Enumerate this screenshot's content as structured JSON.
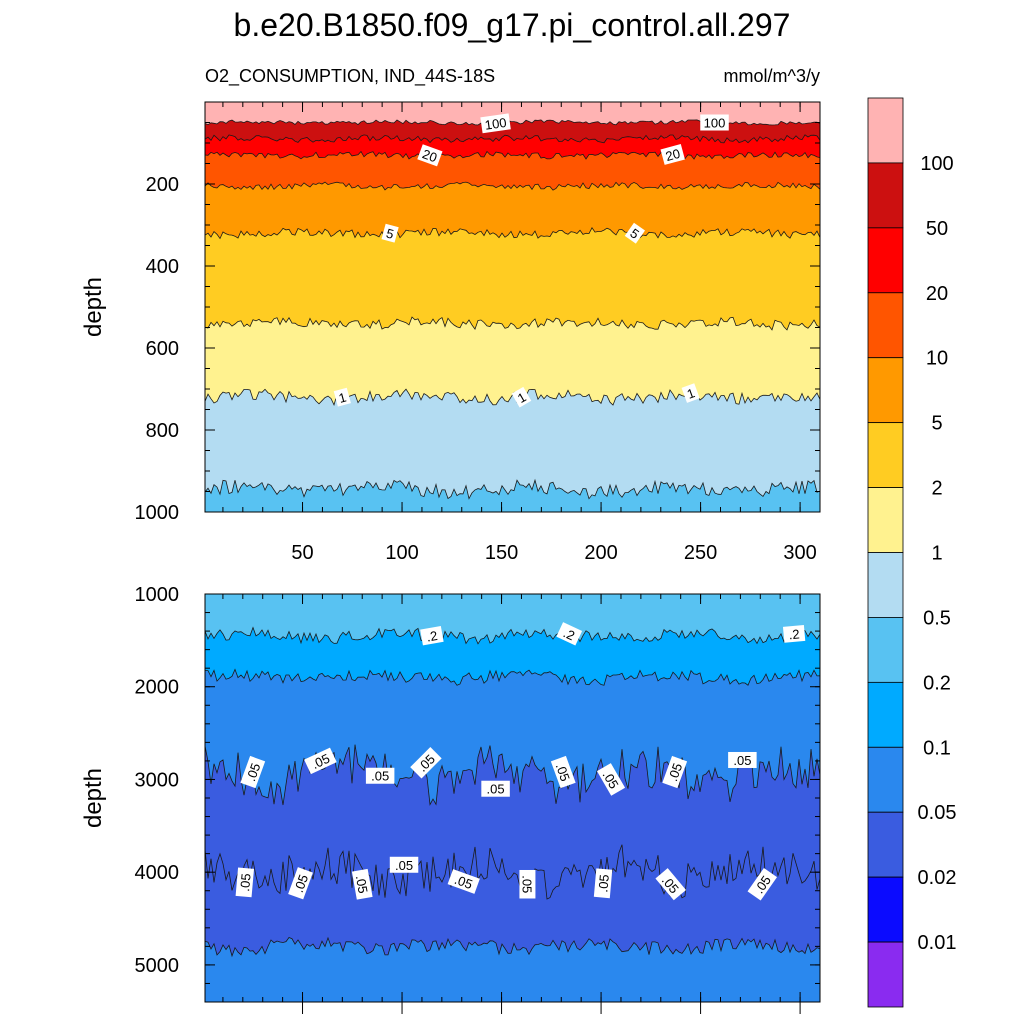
{
  "title": "b.e20.B1850.f09_g17.pi_control.all.297",
  "subtitle_left": "O2_CONSUMPTION, IND_44S-18S",
  "subtitle_right": "mmol/m^3/y",
  "chart_data": [
    {
      "type": "contour",
      "panel": "upper",
      "ylabel": "depth",
      "xlabel": "",
      "xlim": [
        1,
        310
      ],
      "ylim": [
        1000,
        0
      ],
      "x_ticks": [
        50,
        100,
        150,
        200,
        250,
        300
      ],
      "y_ticks": [
        200,
        400,
        600,
        800,
        1000
      ],
      "contour_depths": [
        {
          "level": 100,
          "depth": 50
        },
        {
          "level": 50,
          "depth": 90
        },
        {
          "level": 20,
          "depth": 130
        },
        {
          "level": 10,
          "depth": 205
        },
        {
          "level": 5,
          "depth": 320
        },
        {
          "level": 2,
          "depth": 540
        },
        {
          "level": 1,
          "depth": 720
        },
        {
          "level": 0.5,
          "depth": 945
        }
      ],
      "contour_labels": [
        {
          "text": "100",
          "x": 147,
          "depth": 52,
          "angle": -8
        },
        {
          "text": "100",
          "x": 257,
          "depth": 50,
          "angle": 0
        },
        {
          "text": "20",
          "x": 114,
          "depth": 130,
          "angle": 20
        },
        {
          "text": "20",
          "x": 236,
          "depth": 128,
          "angle": -15
        },
        {
          "text": "5",
          "x": 94,
          "depth": 320,
          "angle": 15
        },
        {
          "text": "5",
          "x": 217,
          "depth": 320,
          "angle": 35
        },
        {
          "text": "1",
          "x": 70,
          "depth": 720,
          "angle": -15
        },
        {
          "text": "1",
          "x": 160,
          "depth": 720,
          "angle": -30
        },
        {
          "text": "1",
          "x": 245,
          "depth": 710,
          "angle": -20
        }
      ]
    },
    {
      "type": "contour",
      "panel": "lower",
      "ylabel": "depth",
      "xlabel": "",
      "xlim": [
        1,
        310
      ],
      "ylim": [
        5400,
        1000
      ],
      "y_ticks": [
        1000,
        2000,
        3000,
        4000,
        5000
      ],
      "contour_depths": [
        {
          "level": 0.2,
          "depth": 1450
        },
        {
          "level": 0.1,
          "depth": 1900
        },
        {
          "level": 0.05,
          "depth": 2950
        },
        {
          "level": 0.05,
          "depth": 4000
        },
        {
          "level": 0.1,
          "depth": 4800
        }
      ],
      "contour_labels": [
        {
          "text": ".2",
          "x": 115,
          "depth": 1450,
          "angle": -10
        },
        {
          "text": ".2",
          "x": 184,
          "depth": 1430,
          "angle": 25
        },
        {
          "text": ".2",
          "x": 297,
          "depth": 1430,
          "angle": -5
        },
        {
          "text": ".05",
          "x": 25,
          "depth": 2920,
          "angle": -70
        },
        {
          "text": ".05",
          "x": 59,
          "depth": 2800,
          "angle": -25
        },
        {
          "text": ".05",
          "x": 89,
          "depth": 2960,
          "angle": 0
        },
        {
          "text": ".05",
          "x": 112,
          "depth": 2820,
          "angle": -45
        },
        {
          "text": ".05",
          "x": 147,
          "depth": 3100,
          "angle": 0
        },
        {
          "text": ".05",
          "x": 181,
          "depth": 2920,
          "angle": 70
        },
        {
          "text": ".05",
          "x": 205,
          "depth": 3000,
          "angle": 60
        },
        {
          "text": ".05",
          "x": 237,
          "depth": 2920,
          "angle": -70
        },
        {
          "text": ".05",
          "x": 271,
          "depth": 2790,
          "angle": 0
        },
        {
          "text": ".05",
          "x": 21,
          "depth": 4110,
          "angle": -85
        },
        {
          "text": ".05",
          "x": 49,
          "depth": 4120,
          "angle": -70
        },
        {
          "text": ".05",
          "x": 80,
          "depth": 4130,
          "angle": 80
        },
        {
          "text": ".05",
          "x": 101,
          "depth": 3920,
          "angle": 0
        },
        {
          "text": ".05",
          "x": 131,
          "depth": 4100,
          "angle": 20
        },
        {
          "text": ".05",
          "x": 163,
          "depth": 4130,
          "angle": 90
        },
        {
          "text": ".05",
          "x": 201,
          "depth": 4120,
          "angle": -85
        },
        {
          "text": ".05",
          "x": 235,
          "depth": 4130,
          "angle": 50
        },
        {
          "text": ".05",
          "x": 281,
          "depth": 4130,
          "angle": -55
        }
      ]
    }
  ],
  "colorbar": {
    "labels": [
      "100",
      "50",
      "20",
      "10",
      "5",
      "2",
      "1",
      "0.5",
      "0.2",
      "0.1",
      "0.05",
      "0.02",
      "0.01"
    ],
    "colors": [
      "#ffb3b3",
      "#cc1010",
      "#ff0000",
      "#ff5500",
      "#ff9900",
      "#ffcc22",
      "#fff28f",
      "#b3dcf2",
      "#58c2f2",
      "#00aaff",
      "#2a88ee",
      "#3a5ce0",
      "#0b0bff",
      "#8a2bf0"
    ]
  }
}
